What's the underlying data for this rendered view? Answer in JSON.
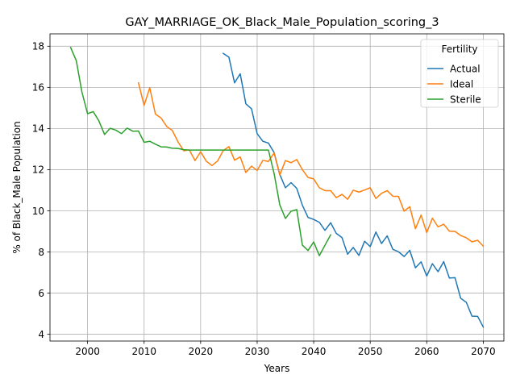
{
  "chart_data": {
    "type": "line",
    "title": "GAY_MARRIAGE_OK_Black_Male_Population_scoring_3",
    "xlabel": "Years",
    "ylabel": "% of Black_Male Population",
    "xlim": [
      1993.35,
      2073.65
    ],
    "ylim": [
      3.67,
      18.6
    ],
    "xticks": [
      2000,
      2010,
      2020,
      2030,
      2040,
      2050,
      2060,
      2070
    ],
    "yticks": [
      4,
      6,
      8,
      10,
      12,
      14,
      16,
      18
    ],
    "grid": true,
    "legend": {
      "title": "Fertility",
      "position": "top-right"
    },
    "series": [
      {
        "name": "Actual",
        "color": "#1f77b4",
        "x": [
          2024,
          2025,
          2026,
          2027,
          2028,
          2029,
          2030,
          2031,
          2032,
          2033,
          2034,
          2035,
          2036,
          2037,
          2038,
          2039,
          2040,
          2041,
          2042,
          2043,
          2044,
          2045,
          2046,
          2047,
          2048,
          2049,
          2050,
          2051,
          2052,
          2053,
          2054,
          2055,
          2056,
          2057,
          2058,
          2059,
          2060,
          2061,
          2062,
          2063,
          2064,
          2065,
          2066,
          2067,
          2068,
          2069,
          2070
        ],
        "y": [
          17.65,
          17.47,
          16.22,
          16.66,
          15.2,
          14.96,
          13.75,
          13.38,
          13.29,
          12.83,
          11.77,
          11.12,
          11.37,
          11.09,
          10.27,
          9.68,
          9.58,
          9.44,
          9.05,
          9.42,
          8.9,
          8.7,
          7.89,
          8.22,
          7.83,
          8.52,
          8.26,
          8.97,
          8.41,
          8.78,
          8.13,
          8.01,
          7.78,
          8.08,
          7.23,
          7.52,
          6.83,
          7.43,
          7.04,
          7.53,
          6.73,
          6.75,
          5.75,
          5.55,
          4.88,
          4.87,
          4.35
        ]
      },
      {
        "name": "Ideal",
        "color": "#ff7f0e",
        "x": [
          2009,
          2010,
          2011,
          2012,
          2013,
          2014,
          2015,
          2016,
          2017,
          2018,
          2019,
          2020,
          2021,
          2022,
          2023,
          2024,
          2025,
          2026,
          2027,
          2028,
          2029,
          2030,
          2031,
          2032,
          2033,
          2034,
          2035,
          2036,
          2037,
          2038,
          2039,
          2040,
          2041,
          2042,
          2043,
          2044,
          2045,
          2046,
          2047,
          2048,
          2049,
          2050,
          2051,
          2052,
          2053,
          2054,
          2055,
          2056,
          2057,
          2058,
          2059,
          2060,
          2061,
          2062,
          2063,
          2064,
          2065,
          2066,
          2067,
          2068,
          2069,
          2070
        ],
        "y": [
          16.22,
          15.12,
          15.98,
          14.7,
          14.51,
          14.1,
          13.9,
          13.35,
          12.92,
          12.96,
          12.44,
          12.87,
          12.41,
          12.2,
          12.42,
          12.93,
          13.12,
          12.46,
          12.62,
          11.86,
          12.17,
          11.96,
          12.45,
          12.4,
          12.81,
          11.74,
          12.44,
          12.34,
          12.49,
          12.0,
          11.62,
          11.55,
          11.12,
          10.98,
          10.98,
          10.64,
          10.8,
          10.56,
          11.0,
          10.91,
          11.01,
          11.12,
          10.6,
          10.85,
          10.98,
          10.71,
          10.7,
          9.98,
          10.2,
          9.13,
          9.79,
          8.94,
          9.64,
          9.22,
          9.35,
          9.01,
          9.0,
          8.8,
          8.69,
          8.49,
          8.57,
          8.28
        ]
      },
      {
        "name": "Sterile",
        "color": "#2ca02c",
        "x": [
          1997,
          1998,
          1999,
          2000,
          2001,
          2002,
          2003,
          2004,
          2005,
          2006,
          2007,
          2008,
          2009,
          2010,
          2011,
          2012,
          2013,
          2014,
          2015,
          2016,
          2017,
          2018,
          2019,
          2020,
          2021,
          2022,
          2023,
          2024,
          2025,
          2026,
          2027,
          2028,
          2029,
          2030,
          2031,
          2032,
          2033,
          2034,
          2035,
          2036,
          2037,
          2038,
          2039,
          2040,
          2041,
          2042,
          2043
        ],
        "y": [
          17.94,
          17.3,
          15.77,
          14.72,
          14.82,
          14.37,
          13.71,
          14.01,
          13.92,
          13.75,
          14.02,
          13.87,
          13.88,
          13.33,
          13.38,
          13.24,
          13.11,
          13.1,
          13.04,
          13.03,
          12.97,
          12.95,
          12.95,
          12.95,
          12.95,
          12.95,
          12.95,
          12.95,
          12.95,
          12.95,
          12.95,
          12.95,
          12.95,
          12.95,
          12.95,
          12.95,
          11.81,
          10.29,
          9.63,
          9.98,
          10.06,
          8.33,
          8.07,
          8.49,
          7.82,
          8.33,
          8.83
        ]
      }
    ]
  }
}
